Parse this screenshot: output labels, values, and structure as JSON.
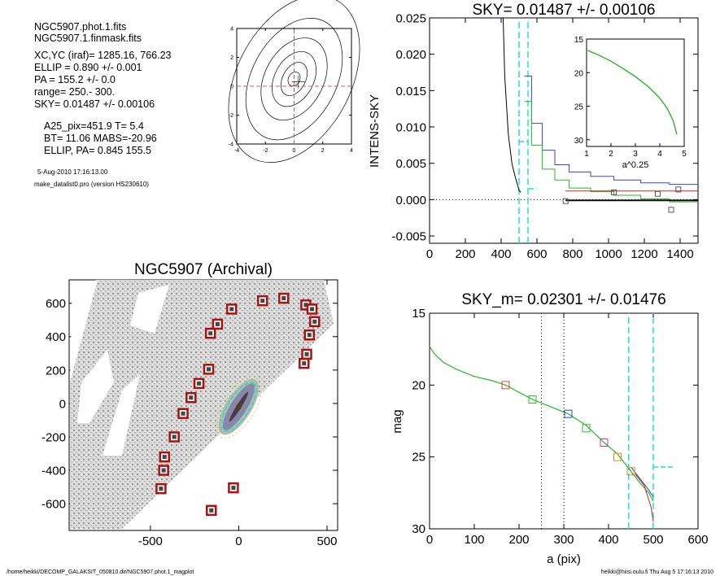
{
  "header": {
    "lines": [
      "NGC5907.phot.1.fits",
      "NGC5907.1.finmask.fits",
      "XC,YC (iraf)=  1285.16, 766.23",
      "ELLIP = 0.890 +/- 0.001",
      "PA    = 155.2 +/-   0.0",
      "range=  250.-  300.",
      "SKY= 0.01487 +/- 0.00106",
      "A25_pix=451.9   T= 5.4",
      "BT=  11.06   MABS=-20.96",
      "ELLIP, PA= 0.845   155.5"
    ],
    "date": "5-Aug-2010 17:16:13.00",
    "program": "make_datalist0.pro (version HS230610)"
  },
  "footer": {
    "left": "/home/heikki/DECOMP_GALAKSIT_050810.dir/NGC5907.phot.1_magplot",
    "right": "heikki@hiisi.oulu.fi  Thu Aug  5 17:16:13 2010"
  },
  "colors": {
    "blue": "#3344cc",
    "green": "#22bb22",
    "red": "#cc2222",
    "cyan": "#22dddd",
    "box": "#aa1111"
  },
  "chart_data": [
    {
      "id": "contour",
      "type": "contour",
      "xlim": [
        -4,
        4
      ],
      "ylim": [
        -4,
        4
      ],
      "xticks": [
        -4,
        -2,
        0,
        2,
        4
      ],
      "yticks": [
        -4,
        -2,
        0,
        2,
        4
      ],
      "center": [
        0,
        0.5
      ]
    },
    {
      "id": "sky",
      "type": "line",
      "title": "SKY= 0.01487 +/- 0.00106",
      "ylabel": "INTENS-SKY",
      "xlim": [
        0,
        1500
      ],
      "ylim": [
        -0.006,
        0.025
      ],
      "xticks": [
        0,
        200,
        400,
        600,
        800,
        1000,
        1200,
        1400
      ],
      "yticks": [
        -0.005,
        0.0,
        0.005,
        0.01,
        0.015,
        0.02,
        0.025
      ],
      "ytick_labels": [
        "-0.005",
        "0.000",
        "0.005",
        "0.010",
        "0.015",
        "0.020",
        "0.025"
      ],
      "profile": [
        [
          410,
          0.026
        ],
        [
          420,
          0.017
        ],
        [
          440,
          0.009
        ],
        [
          460,
          0.005
        ],
        [
          480,
          0.003
        ],
        [
          500,
          0.0013
        ],
        [
          510,
          0.001
        ]
      ],
      "blue_steps": [
        [
          530,
          0.017
        ],
        [
          570,
          0.0105
        ],
        [
          630,
          0.0068
        ],
        [
          700,
          0.0048
        ],
        [
          780,
          0.0038
        ],
        [
          900,
          0.0032
        ],
        [
          1030,
          0.0027
        ],
        [
          1180,
          0.0023
        ],
        [
          1340,
          0.0021
        ],
        [
          1500,
          0.0021
        ]
      ],
      "green_steps": [
        [
          530,
          0.0135
        ],
        [
          570,
          0.0075
        ],
        [
          630,
          0.0042
        ],
        [
          700,
          0.0027
        ],
        [
          780,
          0.0016
        ],
        [
          900,
          0.0011
        ],
        [
          1030,
          0.0006
        ],
        [
          1180,
          0.0001
        ],
        [
          1340,
          -0.0003
        ],
        [
          1500,
          -0.0008
        ]
      ],
      "red_line": [
        [
          760,
          0.0012
        ],
        [
          1500,
          0.0012
        ]
      ],
      "black_line": [
        [
          760,
          -0.0001
        ],
        [
          1500,
          -0.0001
        ]
      ],
      "squares": [
        [
          760,
          -0.0002
        ],
        [
          1030,
          0.001
        ],
        [
          1275,
          0.0008
        ],
        [
          1390,
          0.0014
        ],
        [
          1350,
          -0.0014
        ]
      ],
      "cyan_vlines": [
        500,
        550
      ],
      "cyan_hsegments": [
        [
          [
            500,
            0.008
          ],
          [
            550,
            0.008
          ]
        ],
        [
          [
            555,
            0.0015
          ],
          [
            600,
            0.0015
          ]
        ]
      ],
      "inset": {
        "xlabel": "a^0.25",
        "xlim": [
          1,
          5
        ],
        "ylim": [
          15,
          31
        ],
        "xticks": [
          1,
          2,
          3,
          4,
          5
        ],
        "yticks": [
          15,
          20,
          25,
          30
        ],
        "curve": [
          [
            1.05,
            16.7
          ],
          [
            1.5,
            17.4
          ],
          [
            2.0,
            18.3
          ],
          [
            2.5,
            19.4
          ],
          [
            3.0,
            20.6
          ],
          [
            3.5,
            22.0
          ],
          [
            4.0,
            23.8
          ],
          [
            4.3,
            25.3
          ],
          [
            4.55,
            27.2
          ],
          [
            4.7,
            29.2
          ]
        ]
      }
    },
    {
      "id": "image",
      "type": "scatter",
      "title": "NGC5907 (Archival)",
      "xlim": [
        -960,
        560
      ],
      "ylim": [
        -760,
        740
      ],
      "xticks": [
        -500,
        0,
        500
      ],
      "yticks": [
        -600,
        -400,
        -200,
        0,
        200,
        400,
        600
      ],
      "masks": [
        [
          -440,
          -510
        ],
        [
          -425,
          -400
        ],
        [
          -420,
          -320
        ],
        [
          -365,
          -200
        ],
        [
          -315,
          -60
        ],
        [
          -270,
          35
        ],
        [
          -225,
          120
        ],
        [
          -170,
          205
        ],
        [
          -160,
          420
        ],
        [
          -120,
          475
        ],
        [
          -40,
          565
        ],
        [
          135,
          615
        ],
        [
          255,
          630
        ],
        [
          380,
          590
        ],
        [
          415,
          565
        ],
        [
          430,
          490
        ],
        [
          400,
          410
        ],
        [
          385,
          295
        ],
        [
          370,
          240
        ],
        [
          -30,
          -505
        ],
        [
          -155,
          -640
        ]
      ],
      "galaxy": {
        "center": [
          0,
          -20
        ],
        "pa": 155.2,
        "axes": [
          390,
          55
        ]
      }
    },
    {
      "id": "mag",
      "type": "line",
      "title": "SKY_m=  0.02301 +/- 0.01476",
      "xlabel": "a (pix)",
      "ylabel": "mag",
      "xlim": [
        0,
        600
      ],
      "ylim": [
        15,
        30
      ],
      "xticks": [
        0,
        100,
        200,
        300,
        400,
        500,
        600
      ],
      "yticks": [
        15,
        20,
        25,
        30
      ],
      "curve": [
        [
          0,
          17.3
        ],
        [
          10,
          17.8
        ],
        [
          30,
          18.4
        ],
        [
          60,
          18.9
        ],
        [
          100,
          19.4
        ],
        [
          140,
          19.7
        ],
        [
          170,
          20.0
        ],
        [
          200,
          20.5
        ],
        [
          230,
          21.0
        ],
        [
          270,
          21.5
        ],
        [
          310,
          22.0
        ],
        [
          350,
          22.8
        ],
        [
          390,
          24.0
        ],
        [
          420,
          24.8
        ],
        [
          450,
          26.0
        ],
        [
          470,
          26.8
        ],
        [
          490,
          27.5
        ],
        [
          500,
          28.1
        ]
      ],
      "tail_blue": [
        [
          450,
          25.7
        ],
        [
          470,
          26.5
        ],
        [
          490,
          27.3
        ],
        [
          500,
          27.8
        ]
      ],
      "tail_red": [
        [
          460,
          26.2
        ],
        [
          480,
          27.0
        ],
        [
          495,
          28.5
        ],
        [
          500,
          29.5
        ]
      ],
      "dotted_vlines": [
        250,
        300
      ],
      "cyan_vlines": [
        445,
        500
      ],
      "cyan_hsegment": [
        [
          500,
          25.7
        ],
        [
          545,
          25.7
        ]
      ],
      "squares": [
        {
          "x": 170,
          "y": 20.0,
          "color": "red"
        },
        {
          "x": 230,
          "y": 21.0,
          "color": "green"
        },
        {
          "x": 310,
          "y": 22.0,
          "color": "blue"
        },
        {
          "x": 350,
          "y": 23.0,
          "color": "green"
        },
        {
          "x": 390,
          "y": 24.0,
          "color": "magenta"
        },
        {
          "x": 420,
          "y": 25.0,
          "color": "orange"
        },
        {
          "x": 450,
          "y": 26.0,
          "color": "orange"
        }
      ]
    }
  ]
}
